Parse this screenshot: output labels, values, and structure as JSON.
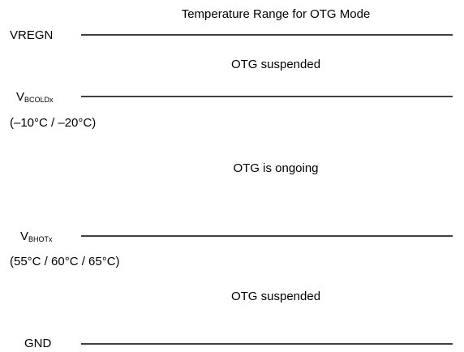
{
  "title": "Temperature Range for OTG Mode",
  "levels": [
    {
      "label": {
        "main": "VREGN"
      }
    },
    {
      "label": {
        "main": "V",
        "sub": "BCOLDx"
      },
      "note": "(–10°C / –20°C)"
    },
    {
      "label": {
        "main": "V",
        "sub": "BHOTx"
      },
      "note": "(55°C / 60°C / 65°C)"
    },
    {
      "label": {
        "main": "GND"
      }
    }
  ],
  "regions": [
    "OTG suspended",
    "OTG is ongoing",
    "OTG suspended"
  ]
}
